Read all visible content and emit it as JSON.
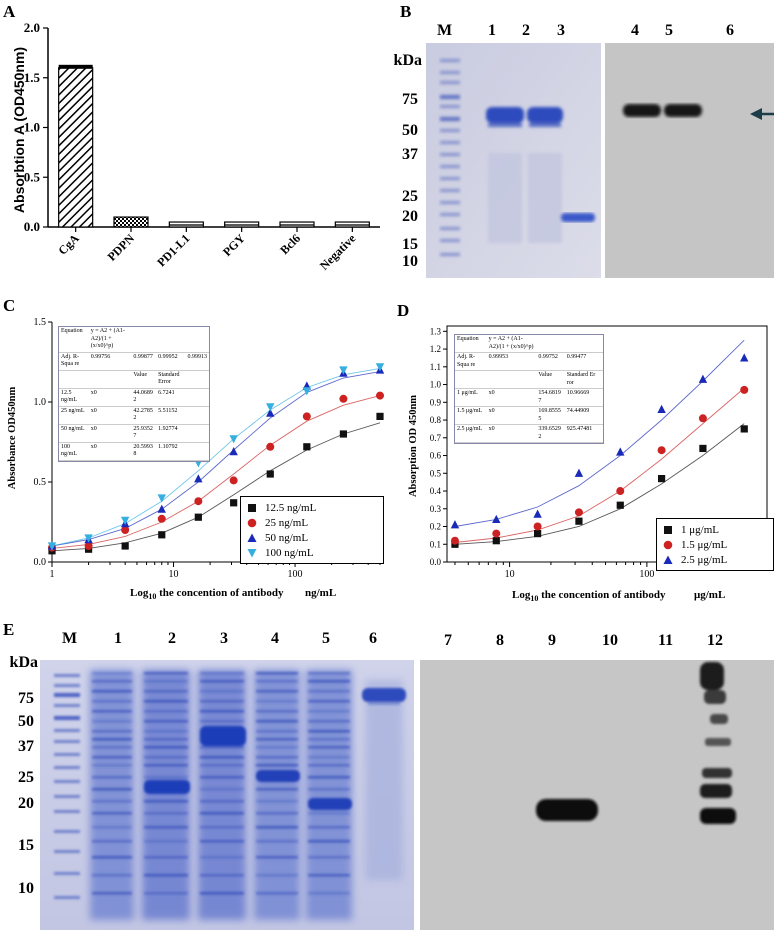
{
  "panels": {
    "A": "A",
    "B": "B",
    "C": "C",
    "D": "D",
    "E": "E"
  },
  "chart_data": [
    {
      "id": "A",
      "type": "bar",
      "ylabel": "Absorbtion A (OD450nm)",
      "categories": [
        "CgA",
        "PDPN",
        "PD1-L1",
        "PGY",
        "Bcl6",
        "Negative"
      ],
      "values": [
        1.6,
        0.1,
        0.05,
        0.05,
        0.05,
        0.05
      ],
      "errors": [
        0.03,
        0,
        0,
        0,
        0,
        0
      ],
      "ylim": [
        0,
        2.0
      ],
      "yticks": [
        "0.0",
        "0.5",
        "1.0",
        "1.5",
        "2.0"
      ]
    },
    {
      "id": "C",
      "type": "scatter",
      "xscale": "log",
      "xlabel_prefix": "Log",
      "xlabel_sub": "10",
      "xlabel_rest": " the concention of antibody",
      "xunit": "ng/mL",
      "ylabel": "Absorbance OD450nm",
      "xlim": [
        1,
        500
      ],
      "ylim": [
        0,
        1.5
      ],
      "xticks": [
        "1",
        "10",
        "100"
      ],
      "yticks": [
        "0.0",
        "0.5",
        "1.0",
        "1.5"
      ],
      "x": [
        1,
        2,
        4,
        8,
        16,
        31.25,
        62.5,
        125,
        250,
        500
      ],
      "series": [
        {
          "name": "12.5 ng/mL",
          "color": "#111111",
          "marker": "square",
          "values": [
            0.07,
            0.08,
            0.1,
            0.17,
            0.28,
            0.37,
            0.55,
            0.72,
            0.8,
            0.91
          ],
          "fit": [
            0.07,
            0.085,
            0.12,
            0.18,
            0.28,
            0.42,
            0.57,
            0.7,
            0.8,
            0.87
          ]
        },
        {
          "name": "25 ng/mL",
          "color": "#cc2222",
          "marker": "circle",
          "values": [
            0.09,
            0.1,
            0.2,
            0.27,
            0.38,
            0.51,
            0.72,
            0.91,
            1.02,
            1.04
          ],
          "fit": [
            0.085,
            0.11,
            0.16,
            0.25,
            0.38,
            0.55,
            0.73,
            0.88,
            0.98,
            1.04
          ]
        },
        {
          "name": "50 ng/mL",
          "color": "#1a2ab8",
          "marker": "triangle",
          "values": [
            0.1,
            0.14,
            0.24,
            0.33,
            0.52,
            0.69,
            0.93,
            1.1,
            1.18,
            1.2
          ],
          "fit": [
            0.1,
            0.14,
            0.21,
            0.33,
            0.5,
            0.7,
            0.9,
            1.06,
            1.15,
            1.19
          ]
        },
        {
          "name": "100 ng/mL",
          "color": "#35aee0",
          "marker": "triangle-down",
          "values": [
            0.1,
            0.15,
            0.26,
            0.4,
            0.62,
            0.77,
            0.97,
            1.07,
            1.2,
            1.22
          ],
          "fit": [
            0.1,
            0.15,
            0.24,
            0.38,
            0.57,
            0.77,
            0.95,
            1.09,
            1.17,
            1.21
          ]
        }
      ]
    },
    {
      "id": "D",
      "type": "scatter",
      "xscale": "log",
      "xlabel_prefix": "Log",
      "xlabel_sub": "10",
      "xlabel_rest": " the concention of antibody",
      "xunit": "μg/mL",
      "ylabel": "Absorption OD 450nm",
      "xlim": [
        3.5,
        750
      ],
      "ylim": [
        0,
        1.33
      ],
      "xticks": [
        "10",
        "100"
      ],
      "yticks": [
        "0.0",
        "0.1",
        "0.2",
        "0.3",
        "0.4",
        "0.5",
        "0.6",
        "0.7",
        "0.8",
        "0.9",
        "1.0",
        "1.1",
        "1.2",
        "1.3"
      ],
      "x": [
        4,
        8,
        16,
        32,
        64,
        128,
        256,
        512
      ],
      "series": [
        {
          "name": "1 μg/mL",
          "color": "#111111",
          "marker": "square",
          "values": [
            0.1,
            0.12,
            0.16,
            0.23,
            0.32,
            0.47,
            0.64,
            0.75
          ],
          "fit": [
            0.1,
            0.115,
            0.145,
            0.2,
            0.3,
            0.44,
            0.6,
            0.78
          ]
        },
        {
          "name": "1.5 μg/mL",
          "color": "#cc2222",
          "marker": "circle",
          "values": [
            0.12,
            0.16,
            0.2,
            0.28,
            0.4,
            0.63,
            0.81,
            0.97
          ],
          "fit": [
            0.11,
            0.135,
            0.18,
            0.26,
            0.4,
            0.58,
            0.78,
            0.98
          ]
        },
        {
          "name": "2.5 μg/mL",
          "color": "#1a2ab8",
          "marker": "triangle",
          "values": [
            0.21,
            0.24,
            0.27,
            0.5,
            0.62,
            0.86,
            1.03,
            1.15
          ],
          "fit": [
            0.2,
            0.24,
            0.31,
            0.43,
            0.6,
            0.8,
            1.02,
            1.25
          ]
        }
      ]
    }
  ],
  "fit_table_C": {
    "rows": [
      [
        "Equation",
        "y = A2 + (A1-A2)/(1 + (x/x0)^p)",
        "",
        "",
        ""
      ],
      [
        "Adj. R-Squa re",
        "0.99756",
        "0.99877",
        "0.99952",
        "0.99913"
      ],
      [
        "",
        "",
        "Value",
        "Standard Error",
        ""
      ],
      [
        "12.5 ng/mL",
        "x0",
        "44.0689 2",
        "6.7241",
        ""
      ],
      [
        "25 ng/mL",
        "x0",
        "42.2785 2",
        "5.51152",
        ""
      ],
      [
        "50 ng/mL",
        "x0",
        "25.9352 7",
        "1.92774",
        ""
      ],
      [
        "100 ng/mL",
        "x0",
        "20.5993 8",
        "1.10792",
        ""
      ]
    ]
  },
  "fit_table_D": {
    "rows": [
      [
        "Equation",
        "y = A2 + (A1-A2)/(1 + (x/x0)^p)",
        "",
        "",
        ""
      ],
      [
        "Adj. R-Squa re",
        "0.99953",
        "0.99752",
        "0.99477",
        ""
      ],
      [
        "",
        "",
        "Value",
        "Standard Er ror",
        ""
      ],
      [
        "1 μg/mL",
        "x0",
        "154.6819 7",
        "10.96669",
        ""
      ],
      [
        "1.5 μg/mL",
        "x0",
        "169.8555 5",
        "74.44909",
        ""
      ],
      [
        "2.5 μg/mL",
        "x0",
        "339.6529 2",
        "925.47481",
        ""
      ]
    ]
  },
  "gel_B": {
    "kda_header": "kDa",
    "marker_label": "M",
    "lanes": [
      "1",
      "2",
      "3",
      "4",
      "5",
      "6"
    ],
    "kda": [
      "75",
      "50",
      "37",
      "25",
      "20",
      "15",
      "10"
    ]
  },
  "gel_E": {
    "kda_header": "kDa",
    "marker_label": "M",
    "lanes": [
      "1",
      "2",
      "3",
      "4",
      "5",
      "6",
      "7",
      "8",
      "9",
      "10",
      "11",
      "12"
    ],
    "kda": [
      "75",
      "50",
      "37",
      "25",
      "20",
      "15",
      "10"
    ]
  },
  "colors": {
    "coomassie_bg": "#d6d8ea",
    "coomassie_band": "#3a52c0",
    "western_bg": "#cfcfcf",
    "western_band": "#111111"
  }
}
